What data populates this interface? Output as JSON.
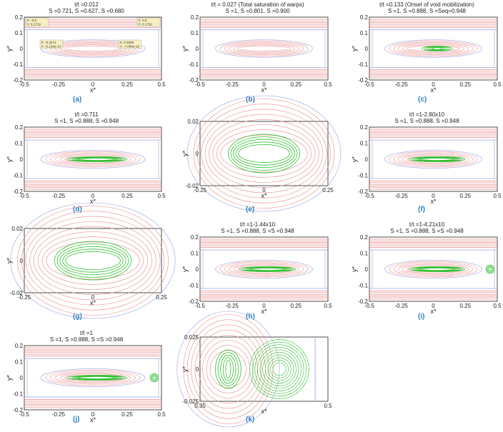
{
  "figure": {
    "colors": {
      "warp": "#e88a8a",
      "weft": "#9aa0e0",
      "front": "#2fc02f",
      "caption": "#2a7fc0",
      "annot": "#f7efc2"
    },
    "axes": {
      "xlabel": "x*",
      "ylabel": "y*"
    },
    "panels": [
      {
        "id": "a",
        "caption": "(a)",
        "kind": "full",
        "title": [
          "t/t  =0.012",
          "S     =0.721, S    =0.627, S =0.680"
        ],
        "xticks": [
          "-0.5",
          "-0.25",
          "0",
          "0.25",
          "0.5"
        ],
        "yticks": [
          "0.2",
          "0.1",
          "0",
          "-0.1",
          "-0.2"
        ],
        "annotations": [
          {
            "text": "X: -0.5\nY: 0.1719"
          },
          {
            "text": "X: 0.5\nY: 0.1702"
          },
          {
            "text": "X: -0.3271\nY: -5.129e-14"
          },
          {
            "text": "X: 0.3306\nY: -7.099e-15"
          }
        ]
      },
      {
        "id": "b",
        "caption": "(b)",
        "kind": "full",
        "title": [
          "t/t    = 0.027 (Total saturation of warps)",
          "S     =1, S    =0.801, S =0.900"
        ],
        "xticks": [
          "-0.5",
          "-0.25",
          "0",
          "0.25",
          "0.5"
        ],
        "yticks": [
          "0.2",
          "0.1",
          "0",
          "-0.1",
          "-0.2"
        ]
      },
      {
        "id": "c",
        "caption": "(c)",
        "kind": "full",
        "title": [
          "t/t    =0.133 (Onset of void mobilization)",
          "S     =1, S    =0.888, S =Seq=0.948"
        ],
        "xticks": [
          "-0.5",
          "-0.25",
          "0",
          "0.25",
          "0.5"
        ],
        "yticks": [
          "0.2",
          "0.1",
          "0",
          "-0.1",
          "-0.2"
        ]
      },
      {
        "id": "d",
        "caption": "(d)",
        "kind": "full",
        "title": [
          "t/t    =0.711",
          "S     =1, S    =0.888, S =0.948"
        ],
        "xticks": [
          "-0.5",
          "-0.25",
          "0",
          "0.25",
          "0.5"
        ],
        "yticks": [
          "0.2",
          "0.1",
          "0",
          "-0.1",
          "-0.2"
        ]
      },
      {
        "id": "e",
        "caption": "(e)",
        "kind": "zoomA",
        "xticks": [
          "-0.25",
          "0",
          "0.25"
        ],
        "yticks": [
          "0.02",
          "0",
          "-0.02"
        ]
      },
      {
        "id": "f",
        "caption": "(f)",
        "kind": "full",
        "title": [
          "t/t    =1-2.80x10",
          "S     =1, S    =0.888, S =0.948"
        ],
        "xticks": [
          "-0.5",
          "-0.25",
          "0",
          "0.25",
          "0.5"
        ],
        "yticks": [
          "0.2",
          "0.1",
          "0",
          "-0.1",
          "-0.2"
        ]
      },
      {
        "id": "g",
        "caption": "(g)",
        "kind": "zoomB",
        "xticks": [
          "-0.25",
          "0",
          "0.25"
        ],
        "yticks": [
          "0.02",
          "0",
          "-0.02"
        ]
      },
      {
        "id": "h",
        "caption": "(h)",
        "kind": "full",
        "title": [
          "t/t    =1-1.44x10",
          "S     =1, S    =0.888, S =S  =0.948"
        ],
        "xticks": [
          "-0.5",
          "-0.25",
          "0",
          "0.25",
          "0.5"
        ],
        "yticks": [
          "0.2",
          "0.1",
          "0",
          "-0.1",
          "-0.2"
        ]
      },
      {
        "id": "i",
        "caption": "(i)",
        "kind": "full",
        "blob": true,
        "title": [
          "t/t    =1-4.21x10",
          "S     =1, S    =0.888, S =S  =0.948"
        ],
        "xticks": [
          "-0.5",
          "-0.25",
          "0",
          "0.25",
          "0.5"
        ],
        "yticks": [
          "0.2",
          "0.1",
          "0",
          "-0.1",
          "-0.2"
        ]
      },
      {
        "id": "j",
        "caption": "(j)",
        "kind": "full",
        "blob": true,
        "title": [
          "t/t    =1",
          "S     =1, S    =0.888, S =S  =0.948"
        ],
        "xticks": [
          "-0.5",
          "-0.25",
          "0",
          "0.25",
          "0.5"
        ],
        "yticks": [
          "0.2",
          "0.1",
          "0",
          "-0.1",
          "-0.2"
        ]
      },
      {
        "id": "k",
        "caption": "(k)",
        "kind": "zoomC",
        "xticks": [
          "0.35",
          "0.5"
        ],
        "yticks": [
          "0.025",
          "0",
          "-0.025"
        ]
      }
    ]
  }
}
